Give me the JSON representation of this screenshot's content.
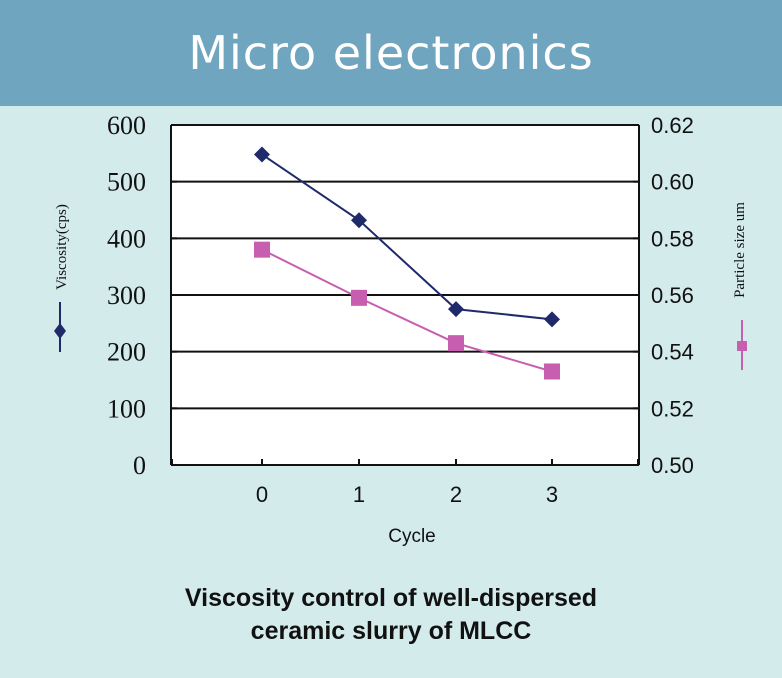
{
  "header": {
    "title": "Micro electronics"
  },
  "caption": {
    "line1": "Viscosity control of well-dispersed",
    "line2": "ceramic slurry of MLCC"
  },
  "colors": {
    "header_bg": "#6fa5be",
    "panel_bg": "#d4ebec",
    "viscosity": "#1f2a6b",
    "particle": "#c85eb0"
  },
  "chart_data": {
    "type": "line",
    "xlabel": "Cycle",
    "x": [
      0,
      1,
      2,
      3
    ],
    "ylabel": "Viscosity(cps)",
    "ylim": [
      0,
      600
    ],
    "yticks": [
      "0",
      "100",
      "200",
      "300",
      "400",
      "500",
      "600"
    ],
    "y2label": "Particle size um",
    "y2lim": [
      0.5,
      0.62
    ],
    "y2ticks": [
      "0.50",
      "0.52",
      "0.54",
      "0.56",
      "0.58",
      "0.60",
      "0.62"
    ],
    "grid": true,
    "series": [
      {
        "name": "Viscosity(cps)",
        "axis": "left",
        "marker": "diamond",
        "values": [
          548,
          432,
          275,
          257
        ]
      },
      {
        "name": "Particle size um",
        "axis": "right",
        "marker": "square",
        "values": [
          0.576,
          0.559,
          0.543,
          0.533
        ]
      }
    ]
  }
}
